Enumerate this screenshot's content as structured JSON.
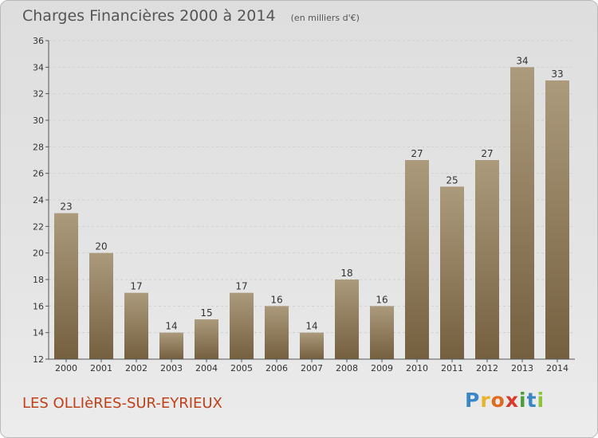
{
  "header": {
    "title": "Charges Financières 2000 à 2014",
    "unit": "(en milliers d'€)"
  },
  "footer": {
    "commune": "LES OLLIèRES-SUR-EYRIEUX"
  },
  "logo": {
    "letters": [
      "P",
      "r",
      "o",
      "x",
      "i",
      "t",
      "i"
    ],
    "colors": [
      "#3b86c6",
      "#e8b52a",
      "#e06b1f",
      "#d93a2a",
      "#4a9e3a",
      "#3b86c6",
      "#8cc43a"
    ]
  },
  "colors": {
    "bar_top": "#ac9a7d",
    "bar_bottom": "#74603f",
    "axis": "#555555",
    "grid": "#cfcfcf",
    "label": "#333333"
  },
  "chart_data": {
    "type": "bar",
    "categories": [
      "2000",
      "2001",
      "2002",
      "2003",
      "2004",
      "2005",
      "2006",
      "2007",
      "2008",
      "2009",
      "2010",
      "2011",
      "2012",
      "2013",
      "2014"
    ],
    "values": [
      23,
      20,
      17,
      14,
      15,
      17,
      16,
      14,
      18,
      16,
      27,
      25,
      27,
      34,
      33
    ],
    "ylim": [
      12,
      36
    ],
    "yticks": [
      12,
      14,
      16,
      18,
      20,
      22,
      24,
      26,
      28,
      30,
      32,
      34,
      36
    ],
    "grid": true,
    "xlabel": "",
    "ylabel": ""
  }
}
